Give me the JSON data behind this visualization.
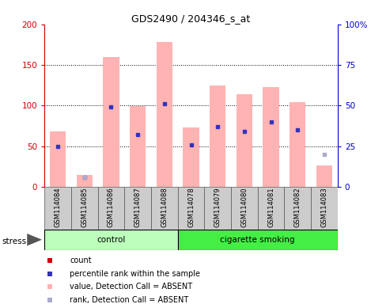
{
  "title": "GDS2490 / 204346_s_at",
  "samples": [
    "GSM114084",
    "GSM114085",
    "GSM114086",
    "GSM114087",
    "GSM114088",
    "GSM114078",
    "GSM114079",
    "GSM114080",
    "GSM114081",
    "GSM114082",
    "GSM114083"
  ],
  "pink_bars": [
    68,
    15,
    160,
    99,
    178,
    73,
    125,
    114,
    123,
    104,
    26
  ],
  "blue_sq_val": [
    25,
    6,
    49,
    32,
    51,
    26,
    37,
    34,
    40,
    35,
    null
  ],
  "blue_sq_absent": [
    null,
    6,
    null,
    null,
    null,
    null,
    null,
    null,
    null,
    null,
    20
  ],
  "pink_sq_val": [
    null,
    null,
    null,
    null,
    null,
    null,
    null,
    null,
    null,
    null,
    null
  ],
  "left_ylim": [
    0,
    200
  ],
  "right_ylim": [
    0,
    100
  ],
  "left_yticks": [
    0,
    50,
    100,
    150,
    200
  ],
  "right_yticks": [
    0,
    25,
    50,
    75,
    100
  ],
  "right_yticklabels": [
    "0",
    "25",
    "50",
    "75",
    "100%"
  ],
  "left_ycolor": "#cc0000",
  "right_ycolor": "#0000cc",
  "bar_color": "#ffb3b3",
  "dot_blue_present": "#3333bb",
  "dot_blue_absent": "#aaaacc",
  "control_color": "#bbffbb",
  "smoking_color": "#44ee44",
  "label_bg": "#cccccc",
  "stress_label": "stress",
  "group1_label": "control",
  "group2_label": "cigarette smoking",
  "legend_items": [
    "count",
    "percentile rank within the sample",
    "value, Detection Call = ABSENT",
    "rank, Detection Call = ABSENT"
  ],
  "legend_colors": [
    "#cc0000",
    "#3333bb",
    "#ffb3b3",
    "#aaaacc"
  ],
  "legend_markers": [
    "s",
    "s",
    "s",
    "s"
  ]
}
